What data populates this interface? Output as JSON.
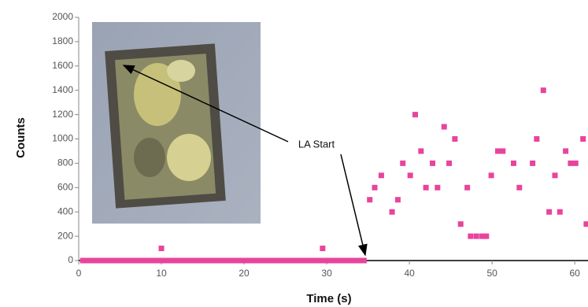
{
  "chart_data": {
    "type": "scatter",
    "x_label": "Time (s)",
    "y_label": "Counts",
    "annotation": "LA Start",
    "xlim": [
      0,
      61.6
    ],
    "xticks": [
      0,
      10,
      20,
      30,
      40,
      50,
      60
    ],
    "ylim": [
      0,
      2000
    ],
    "yticks": [
      0,
      200,
      400,
      600,
      800,
      1000,
      1200,
      1400,
      1600,
      1800,
      2000
    ],
    "series": [
      {
        "color": "#e8449c",
        "x": [
          0.5,
          1,
          1.5,
          2,
          2.5,
          3,
          3.5,
          4,
          4.5,
          5,
          5.5,
          6,
          6.5,
          7,
          7.5,
          8,
          8.5,
          9,
          9.5,
          10,
          10.5,
          11,
          11.5,
          12,
          12.5,
          13,
          13.5,
          14,
          14.5,
          15,
          15.5,
          16,
          16.5,
          17,
          17.5,
          18,
          18.5,
          19,
          19.5,
          20,
          20.5,
          21,
          21.5,
          22,
          22.5,
          23,
          23.5,
          24,
          24.5,
          25,
          25.5,
          26,
          26.5,
          27,
          27.5,
          28,
          28.5,
          29,
          29.5,
          30,
          30.5,
          31,
          31.5,
          32,
          32.5,
          33,
          33.5,
          34,
          34.5,
          10,
          29.5,
          35.2,
          35.8,
          36.6,
          37.9,
          38.6,
          39.2,
          40.1,
          40.7,
          41.4,
          42,
          42.8,
          43.4,
          44.2,
          44.8,
          45.5,
          46.2,
          47,
          47.4,
          48.1,
          48.8,
          49.3,
          49.9,
          50.7,
          51.3,
          52.6,
          53.3,
          54.9,
          55.4,
          56.2,
          56.9,
          57.6,
          58.2,
          58.9,
          59.5,
          60.1,
          61,
          61.4
        ],
        "values": [
          0,
          0,
          0,
          0,
          0,
          0,
          0,
          0,
          0,
          0,
          0,
          0,
          0,
          0,
          0,
          0,
          0,
          0,
          0,
          0,
          0,
          0,
          0,
          0,
          0,
          0,
          0,
          0,
          0,
          0,
          0,
          0,
          0,
          0,
          0,
          0,
          0,
          0,
          0,
          0,
          0,
          0,
          0,
          0,
          0,
          0,
          0,
          0,
          0,
          0,
          0,
          0,
          0,
          0,
          0,
          0,
          0,
          0,
          0,
          0,
          0,
          0,
          0,
          0,
          0,
          0,
          0,
          0,
          0,
          100,
          100,
          500,
          600,
          700,
          400,
          500,
          800,
          700,
          1200,
          900,
          600,
          800,
          600,
          1100,
          800,
          1000,
          300,
          600,
          200,
          200,
          200,
          200,
          700,
          900,
          900,
          800,
          600,
          800,
          1000,
          1400,
          400,
          700,
          400,
          900,
          800,
          800,
          1000,
          300
        ]
      }
    ]
  }
}
